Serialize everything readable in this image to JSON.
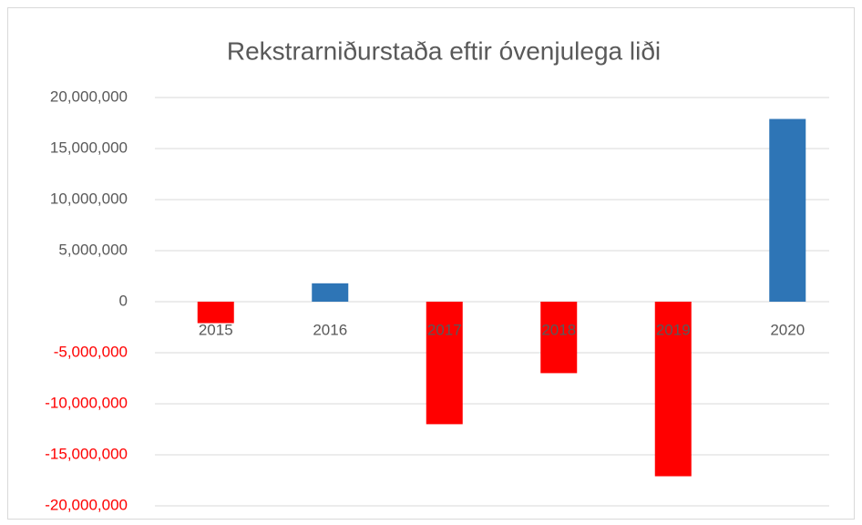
{
  "chart_data": {
    "type": "bar",
    "title": "Rekstrarniðurstaða eftir óvenjulega liði",
    "categories": [
      "2015",
      "2016",
      "2017",
      "2018",
      "2019",
      "2020"
    ],
    "values": [
      -2100000,
      1800000,
      -12000000,
      -7000000,
      -17100000,
      17900000
    ],
    "color": "#2e75b6",
    "negative_color": "#ff0000",
    "ylim": [
      -20000000,
      20000000
    ],
    "yticks": [
      {
        "value": -20000000,
        "label": "-20,000,000"
      },
      {
        "value": -15000000,
        "label": "-15,000,000"
      },
      {
        "value": -10000000,
        "label": "-10,000,000"
      },
      {
        "value": -5000000,
        "label": "-5,000,000"
      },
      0,
      {
        "value": 5000000,
        "label": "5,000,000"
      },
      {
        "value": 10000000,
        "label": "10,000,000"
      },
      {
        "value": 15000000,
        "label": "15,000,000"
      },
      {
        "value": 20000000,
        "label": "20,000,000"
      }
    ],
    "grid": true
  }
}
